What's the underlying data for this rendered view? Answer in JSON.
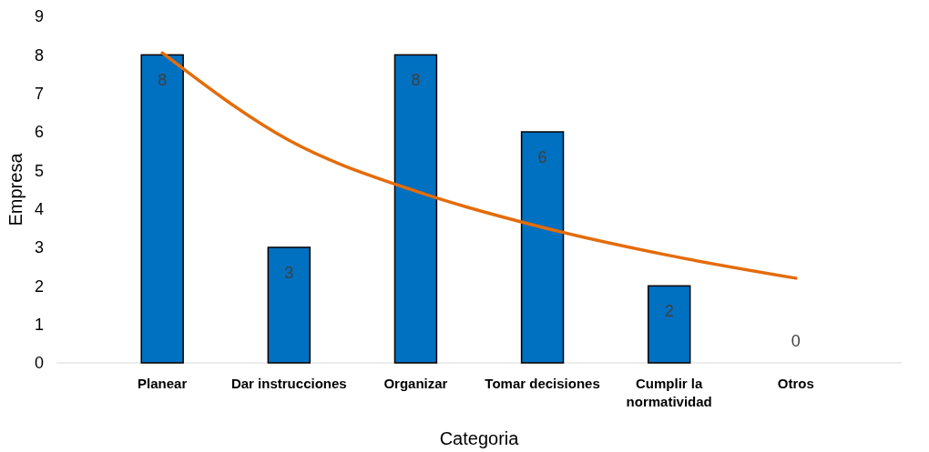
{
  "chart_data": {
    "type": "bar",
    "xlabel": "Categoria",
    "ylabel": "Empresa",
    "categories": [
      "Planear",
      "Dar instrucciones",
      "Organizar",
      "Tomar decisiones",
      "Cumplir la normatividad",
      "Otros"
    ],
    "ylim": [
      0,
      9
    ],
    "yticks": [
      0,
      1,
      2,
      3,
      4,
      5,
      6,
      7,
      8,
      9
    ],
    "series": [
      {
        "color": "#0070c0",
        "values": [
          8,
          3,
          8,
          6,
          2,
          0
        ],
        "value_labels": [
          "8",
          "3",
          "8",
          "6",
          "2",
          "0"
        ]
      },
      {
        "type": "line",
        "color": "#e46c0a",
        "values": [
          8.05,
          5.78,
          4.46,
          3.52,
          2.79,
          2.2
        ]
      }
    ]
  }
}
